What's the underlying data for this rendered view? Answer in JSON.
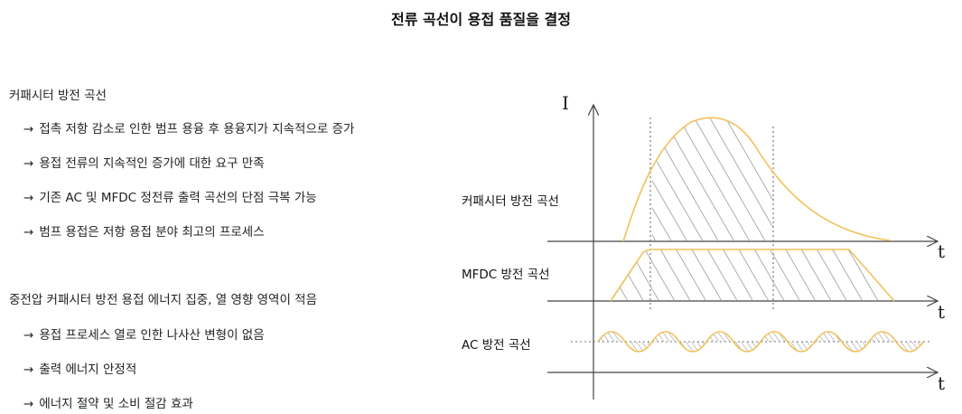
{
  "title": "전류 곡선이 용접 품질을 결정",
  "sections": [
    {
      "heading": "커패시터 방전 곡선",
      "bullets": [
        "접촉 저항 감소로 인한 범프 용융 후 용융지가 지속적으로 증가",
        "용접 전류의 지속적인 증가에 대한 요구 만족",
        "기존 AC 및 MFDC 정전류 출력 곡선의 단점 극복 가능",
        "범프 용접은 저항 용접 분야 최고의 프로세스"
      ]
    },
    {
      "heading": "중전압 커패시터 방전 용접 에너지 집중, 열 영향 영역이 적음",
      "bullets": [
        "용접 프로세스 열로 인한 나사산 변형이 없음",
        "출력 에너지 안정적",
        "에너지 절약 및 소비 절감 효과"
      ]
    }
  ],
  "bullet_arrow": "→",
  "diagram": {
    "y_axis_label": "I",
    "x_axis_label": "t",
    "curves": [
      {
        "label": "커패시터 방전 곡선"
      },
      {
        "label": "MFDC 방전 곡선"
      },
      {
        "label": "AC 방전 곡선"
      }
    ],
    "colors": {
      "curve": "#f2c05a",
      "hatch": "#8a8a8a",
      "axis": "#444444",
      "guide": "#777777"
    }
  }
}
